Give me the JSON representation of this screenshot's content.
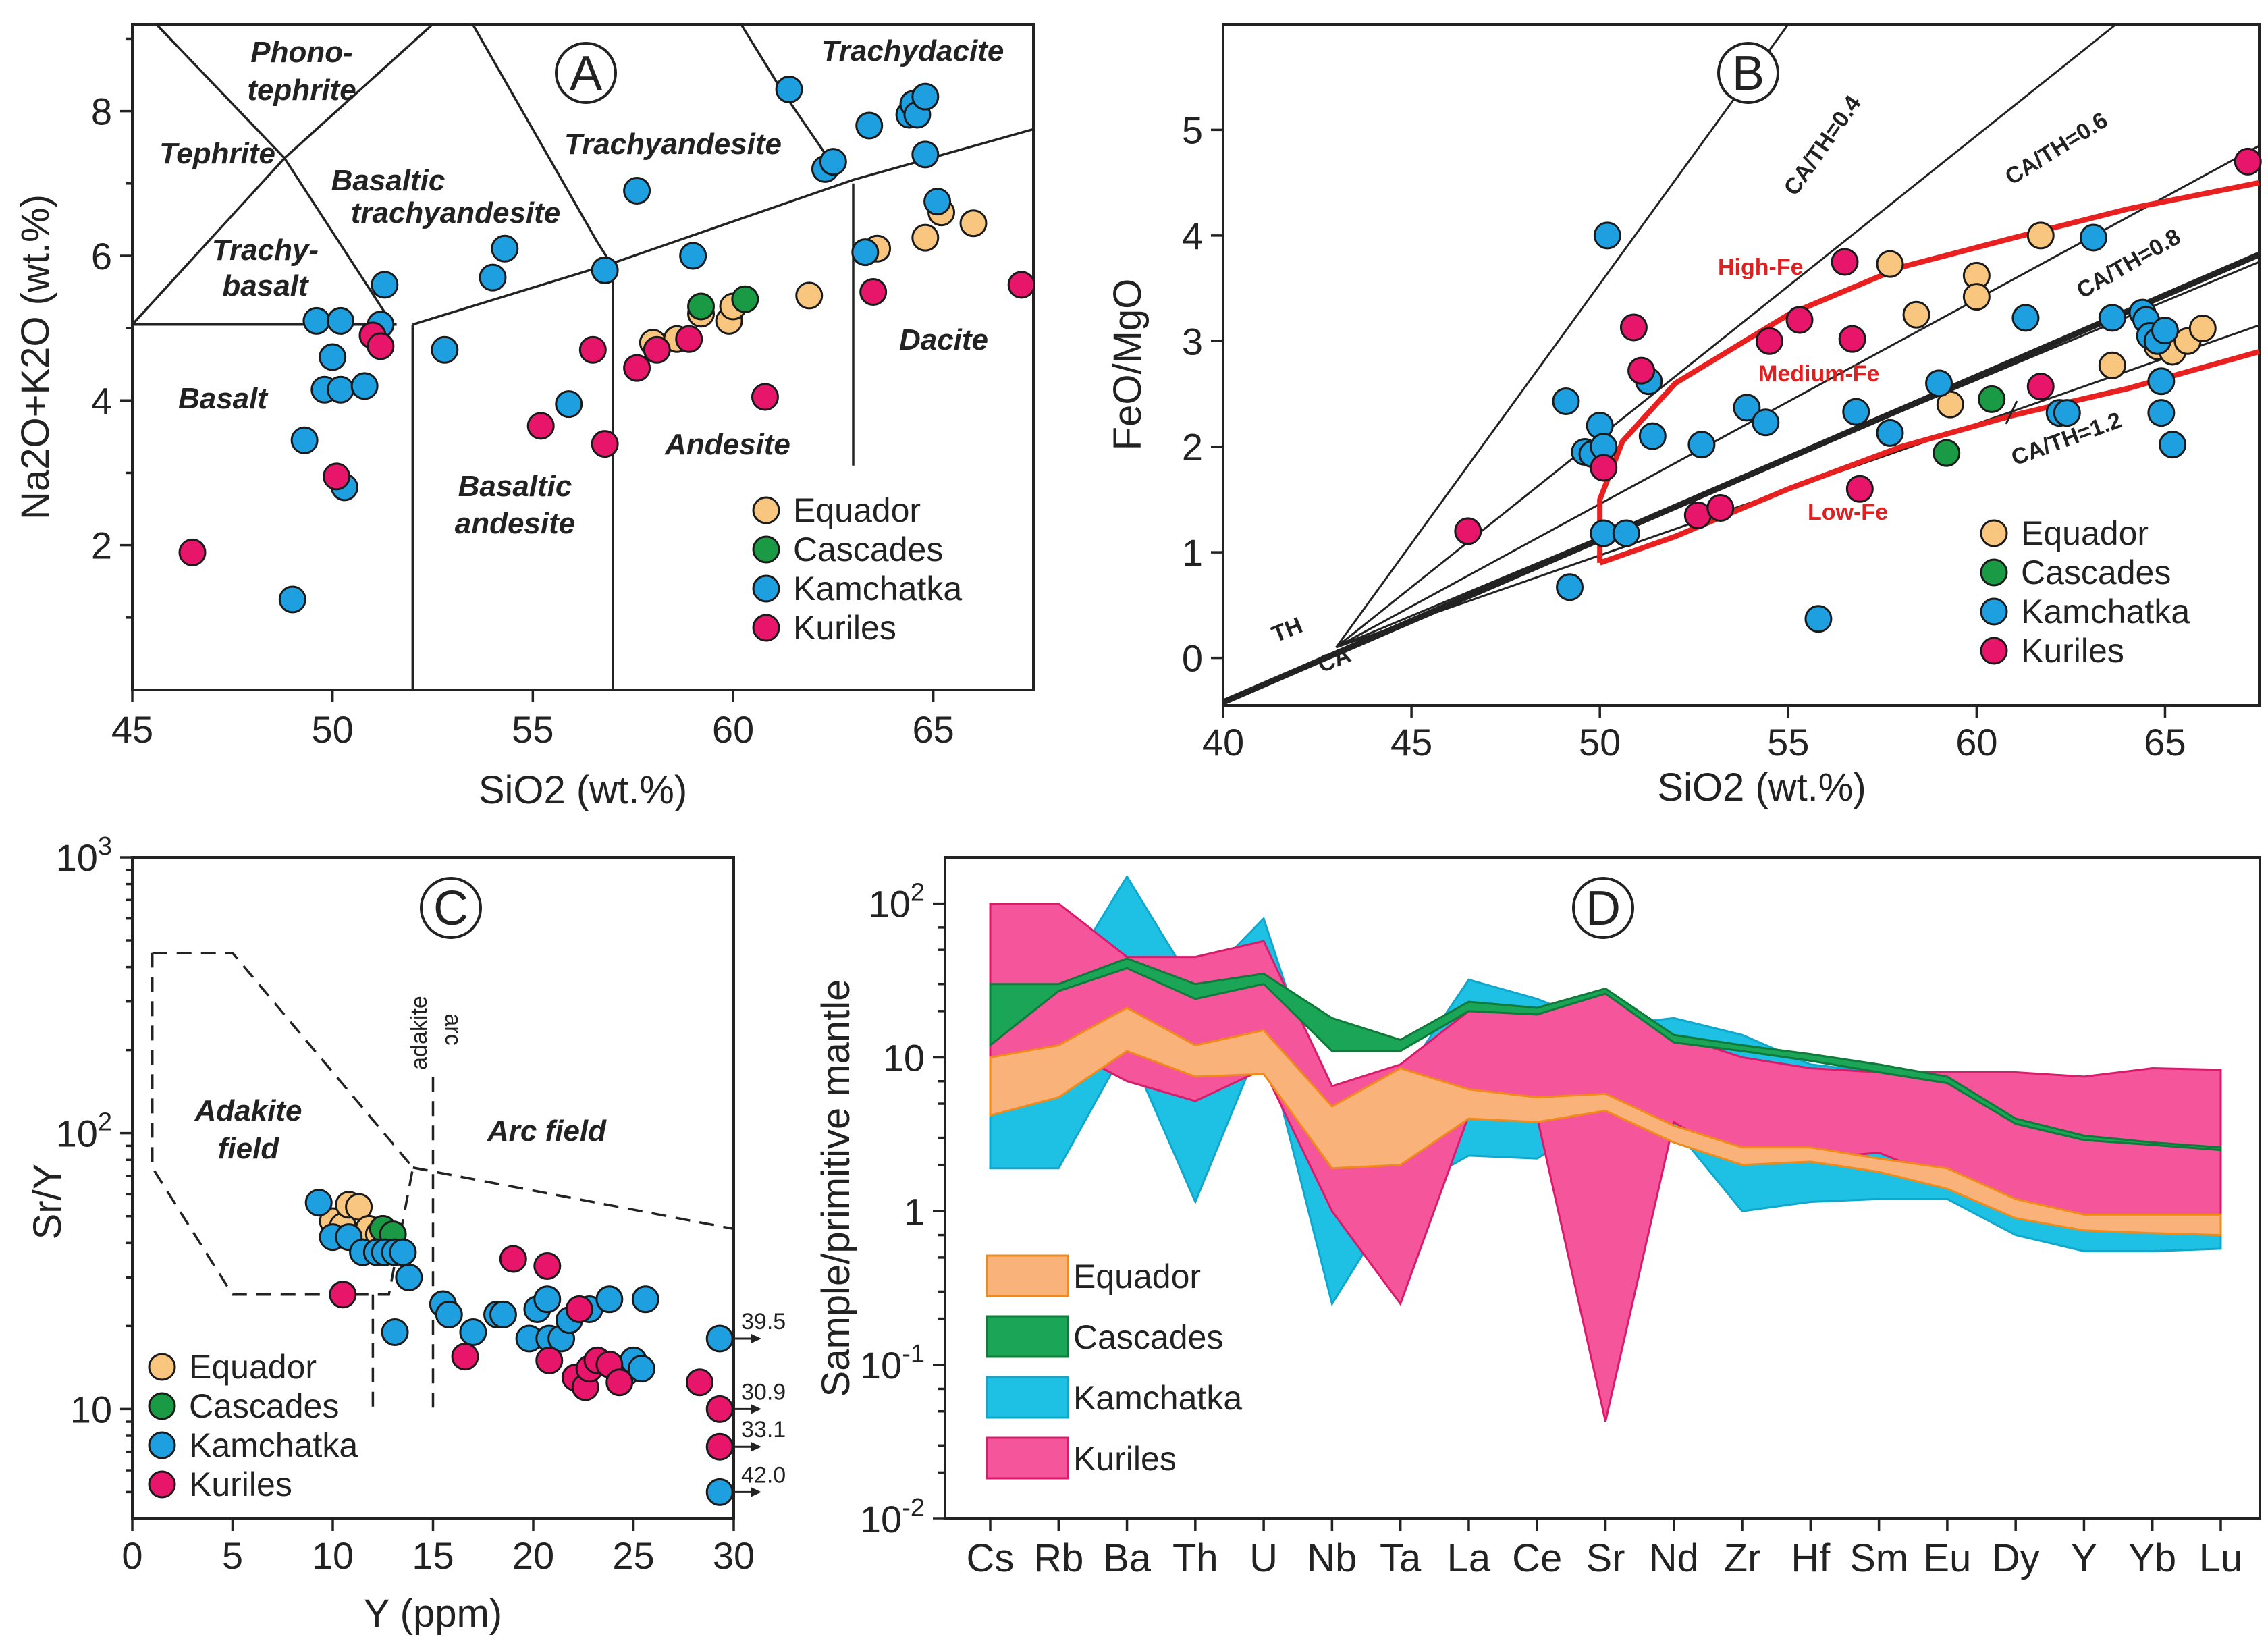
{
  "colors": {
    "Equador": "#f9c680",
    "Cascades": "#1a9a45",
    "Kamchatka": "#1e9fe0",
    "Kuriles": "#e8166b",
    "eq_fill": "#f8b27a",
    "eq_edge": "#f08a1a",
    "ca_fill": "#1ba556",
    "ka_fill": "#1ec0e4",
    "ku_fill": "#f5559a",
    "red": "#e82020"
  },
  "chart_data": [
    {
      "panel": "A",
      "type": "scatter",
      "title": "A",
      "xlabel": "SiO2 (wt.%)",
      "ylabel": "Na2O+K2O (wt.%)",
      "xlim": [
        45,
        67.5
      ],
      "ylim": [
        0,
        9.2
      ],
      "xticks": [
        "45",
        "50",
        "55",
        "60",
        "65"
      ],
      "yticks": [
        "2",
        "4",
        "6",
        "8"
      ],
      "field_labels": [
        "Phono-",
        "tephrite",
        "Tephrite",
        "Trachy-",
        "basalt",
        "Basaltic",
        "trachyandesite",
        "Trachyandesite",
        "Trachydacite",
        "Basalt",
        "Basaltic",
        "andesite",
        "Andesite",
        "Dacite"
      ],
      "legend": [
        "Equador",
        "Cascades",
        "Kamchatka",
        "Kuriles"
      ],
      "series": [
        {
          "name": "Equador",
          "points": [
            [
              58.0,
              4.8
            ],
            [
              58.6,
              4.85
            ],
            [
              59.2,
              5.2
            ],
            [
              59.9,
              5.1
            ],
            [
              60.0,
              5.3
            ],
            [
              61.9,
              5.45
            ],
            [
              63.6,
              6.1
            ],
            [
              64.8,
              6.25
            ],
            [
              65.2,
              6.6
            ],
            [
              66.0,
              6.45
            ]
          ]
        },
        {
          "name": "Cascades",
          "points": [
            [
              59.2,
              5.3
            ],
            [
              60.3,
              5.4
            ]
          ]
        },
        {
          "name": "Kamchatka",
          "points": [
            [
              49.0,
              1.25
            ],
            [
              49.3,
              3.45
            ],
            [
              49.6,
              5.1
            ],
            [
              49.8,
              4.15
            ],
            [
              50.0,
              4.6
            ],
            [
              50.2,
              5.1
            ],
            [
              50.2,
              4.15
            ],
            [
              50.3,
              2.8
            ],
            [
              50.8,
              4.2
            ],
            [
              51.2,
              5.05
            ],
            [
              51.3,
              5.6
            ],
            [
              52.8,
              4.7
            ],
            [
              54.0,
              5.7
            ],
            [
              54.3,
              6.1
            ],
            [
              55.9,
              3.95
            ],
            [
              56.8,
              5.8
            ],
            [
              57.6,
              6.9
            ],
            [
              59.0,
              6.0
            ],
            [
              61.4,
              8.3
            ],
            [
              62.3,
              7.2
            ],
            [
              62.5,
              7.3
            ],
            [
              63.3,
              6.05
            ],
            [
              63.4,
              7.8
            ],
            [
              64.4,
              7.95
            ],
            [
              64.5,
              8.1
            ],
            [
              64.6,
              7.95
            ],
            [
              64.8,
              8.2
            ],
            [
              64.8,
              7.4
            ],
            [
              65.1,
              6.75
            ]
          ]
        },
        {
          "name": "Kuriles",
          "points": [
            [
              46.5,
              1.9
            ],
            [
              50.1,
              2.95
            ],
            [
              51.0,
              4.9
            ],
            [
              51.2,
              4.75
            ],
            [
              55.2,
              3.65
            ],
            [
              56.5,
              4.7
            ],
            [
              56.8,
              3.4
            ],
            [
              57.6,
              4.45
            ],
            [
              58.1,
              4.7
            ],
            [
              58.9,
              4.85
            ],
            [
              60.8,
              4.05
            ],
            [
              63.5,
              5.5
            ],
            [
              67.2,
              5.6
            ]
          ]
        }
      ]
    },
    {
      "panel": "B",
      "type": "scatter",
      "title": "B",
      "xlabel": "SiO2 (wt.%)",
      "ylabel": "FeO/MgO",
      "xlim": [
        40,
        67.5
      ],
      "ylim": [
        -0.45,
        6
      ],
      "xticks": [
        "40",
        "45",
        "50",
        "55",
        "60",
        "65"
      ],
      "yticks": [
        "0",
        "1",
        "2",
        "3",
        "4",
        "5"
      ],
      "line_labels": [
        "CA/TH=0.4",
        "CA/TH=0.6",
        "CA/TH=0.8",
        "CA/TH=1.2",
        "TH",
        "CA"
      ],
      "field_labels": [
        "High-Fe",
        "Medium-Fe",
        "Low-Fe"
      ],
      "legend": [
        "Equador",
        "Cascades",
        "Kamchatka",
        "Kuriles"
      ],
      "series": [
        {
          "name": "Equador",
          "points": [
            [
              57.7,
              3.73
            ],
            [
              58.4,
              3.25
            ],
            [
              59.3,
              2.4
            ],
            [
              60.0,
              3.62
            ],
            [
              60.0,
              3.42
            ],
            [
              61.7,
              4.0
            ],
            [
              63.6,
              2.77
            ],
            [
              64.8,
              2.95
            ],
            [
              65.2,
              2.9
            ],
            [
              65.6,
              3.0
            ],
            [
              66.0,
              3.12
            ]
          ]
        },
        {
          "name": "Cascades",
          "points": [
            [
              59.2,
              1.94
            ],
            [
              60.4,
              2.45
            ]
          ]
        },
        {
          "name": "Kamchatka",
          "points": [
            [
              49.1,
              2.43
            ],
            [
              49.2,
              0.67
            ],
            [
              49.6,
              1.95
            ],
            [
              49.8,
              1.93
            ],
            [
              50.0,
              2.2
            ],
            [
              50.1,
              2.0
            ],
            [
              50.1,
              1.18
            ],
            [
              50.2,
              4.0
            ],
            [
              50.7,
              1.18
            ],
            [
              51.3,
              2.62
            ],
            [
              51.4,
              2.1
            ],
            [
              52.7,
              2.02
            ],
            [
              53.9,
              2.37
            ],
            [
              54.4,
              2.23
            ],
            [
              55.8,
              0.37
            ],
            [
              56.8,
              2.33
            ],
            [
              57.7,
              2.13
            ],
            [
              59.0,
              2.6
            ],
            [
              61.3,
              3.22
            ],
            [
              62.2,
              2.32
            ],
            [
              62.4,
              2.32
            ],
            [
              63.1,
              3.98
            ],
            [
              63.6,
              3.22
            ],
            [
              64.4,
              3.27
            ],
            [
              64.5,
              3.2
            ],
            [
              64.6,
              3.05
            ],
            [
              64.8,
              3.0
            ],
            [
              64.9,
              2.62
            ],
            [
              64.9,
              2.32
            ],
            [
              65.0,
              3.1
            ],
            [
              65.2,
              2.02
            ]
          ]
        },
        {
          "name": "Kuriles",
          "points": [
            [
              46.5,
              1.2
            ],
            [
              50.1,
              1.8
            ],
            [
              50.9,
              3.13
            ],
            [
              51.1,
              2.72
            ],
            [
              52.6,
              1.35
            ],
            [
              53.2,
              1.42
            ],
            [
              54.5,
              3.0
            ],
            [
              55.3,
              3.2
            ],
            [
              56.5,
              3.75
            ],
            [
              56.7,
              3.02
            ],
            [
              56.9,
              1.6
            ],
            [
              61.7,
              2.57
            ],
            [
              67.2,
              4.7
            ]
          ]
        }
      ]
    },
    {
      "panel": "C",
      "type": "scatter",
      "title": "C",
      "xlabel": "Y (ppm)",
      "ylabel": "Sr/Y",
      "xscale": "linear",
      "yscale": "log",
      "xlim": [
        0,
        30
      ],
      "ylim": [
        4,
        1000
      ],
      "xticks": [
        "0",
        "5",
        "10",
        "15",
        "20",
        "25",
        "30"
      ],
      "yticks_base": [
        "10",
        "10",
        "10"
      ],
      "yticks_exp": [
        "",
        "2",
        "3"
      ],
      "field_labels": [
        "Adakite",
        "field",
        "Arc field",
        "adakite",
        "arc"
      ],
      "offscale_labels": [
        "39.5",
        "30.9",
        "33.1",
        "42.0"
      ],
      "legend": [
        "Equador",
        "Cascades",
        "Kamchatka",
        "Kuriles"
      ],
      "series": [
        {
          "name": "Equador",
          "points": [
            [
              10.0,
              48
            ],
            [
              10.5,
              46
            ],
            [
              10.8,
              55
            ],
            [
              11.3,
              54
            ],
            [
              11.8,
              45
            ],
            [
              12.3,
              43
            ]
          ]
        },
        {
          "name": "Cascades",
          "points": [
            [
              12.5,
              45
            ],
            [
              13.0,
              43
            ]
          ]
        },
        {
          "name": "Kamchatka",
          "points": [
            [
              9.3,
              56
            ],
            [
              10.0,
              42
            ],
            [
              10.8,
              42
            ],
            [
              11.5,
              37
            ],
            [
              12.2,
              37
            ],
            [
              12.6,
              37
            ],
            [
              13.1,
              37
            ],
            [
              13.5,
              37
            ],
            [
              13.8,
              30
            ],
            [
              13.1,
              19
            ],
            [
              15.5,
              24
            ],
            [
              15.8,
              22
            ],
            [
              17.0,
              19
            ],
            [
              18.2,
              22
            ],
            [
              18.5,
              22
            ],
            [
              19.8,
              18
            ],
            [
              20.2,
              23
            ],
            [
              20.7,
              25
            ],
            [
              20.8,
              18
            ],
            [
              21.4,
              18
            ],
            [
              21.8,
              21
            ],
            [
              22.3,
              23
            ],
            [
              22.8,
              23
            ],
            [
              23.8,
              25
            ],
            [
              24.2,
              14
            ],
            [
              24.6,
              13.5
            ],
            [
              25.0,
              15
            ],
            [
              25.4,
              14
            ],
            [
              25.6,
              25
            ],
            [
              29.3,
              18
            ],
            [
              29.3,
              5
            ]
          ]
        },
        {
          "name": "Kuriles",
          "points": [
            [
              10.5,
              26
            ],
            [
              16.6,
              15.5
            ],
            [
              19.0,
              35
            ],
            [
              20.7,
              33
            ],
            [
              20.8,
              15
            ],
            [
              22.1,
              13
            ],
            [
              22.3,
              23
            ],
            [
              22.6,
              12
            ],
            [
              22.8,
              14
            ],
            [
              23.2,
              15
            ],
            [
              23.8,
              14.5
            ],
            [
              24.3,
              12.5
            ],
            [
              28.3,
              12.5
            ],
            [
              29.3,
              10
            ],
            [
              29.3,
              7.3
            ]
          ]
        }
      ]
    },
    {
      "panel": "D",
      "type": "area",
      "title": "D",
      "xlabel": "",
      "ylabel": "Sample/primitive mantle",
      "yscale": "log",
      "ylim": [
        0.01,
        200
      ],
      "yticks_base": [
        "10",
        "10",
        "1",
        "10",
        "10"
      ],
      "yticks_exp": [
        "-2",
        "-1",
        "",
        "",
        "2"
      ],
      "categories": [
        "Cs",
        "Rb",
        "Ba",
        "Th",
        "U",
        "Nb",
        "Ta",
        "La",
        "Ce",
        "Sr",
        "Nd",
        "Zr",
        "Hf",
        "Sm",
        "Eu",
        "Dy",
        "Y",
        "Yb",
        "Lu"
      ],
      "legend": [
        "Equador",
        "Cascades",
        "Kamchatka",
        "Kuriles"
      ],
      "series": [
        {
          "name": "Kamchatka",
          "upper": [
            11,
            28,
            150,
            28,
            80,
            3.5,
            7,
            32,
            24,
            16,
            18,
            14,
            9,
            8,
            7,
            3.5,
            3,
            2.8,
            2.6
          ],
          "lower": [
            1.9,
            1.9,
            12,
            1.15,
            14,
            0.25,
            1.3,
            2.3,
            2.2,
            4.2,
            3.5,
            1.0,
            1.15,
            1.2,
            1.2,
            0.7,
            0.55,
            0.55,
            0.57
          ]
        },
        {
          "name": "Kuriles",
          "upper": [
            100,
            100,
            45,
            45,
            57,
            6.5,
            9,
            20,
            20,
            26,
            14,
            10,
            8.5,
            8,
            8,
            8,
            7.5,
            8.5,
            8.3
          ],
          "lower": [
            10,
            12,
            7,
            5.2,
            8.4,
            1.0,
            0.25,
            4.2,
            4.1,
            0.043,
            3.8,
            2.0,
            2.2,
            2.4,
            1.6,
            1.0,
            0.9,
            0.85,
            0.8
          ]
        },
        {
          "name": "Cascades",
          "upper": [
            30,
            30,
            44,
            30,
            35,
            18,
            13,
            23,
            21,
            28,
            14,
            12,
            10.5,
            9,
            7.5,
            4,
            3.1,
            2.8,
            2.6
          ],
          "lower": [
            12,
            27,
            38,
            24,
            30,
            11,
            11,
            20,
            19,
            26,
            12.5,
            11,
            9.5,
            8,
            6.8,
            3.7,
            2.9,
            2.7,
            2.5
          ]
        },
        {
          "name": "Equador",
          "upper": [
            10,
            12,
            21,
            12,
            15,
            4.8,
            8.5,
            6.2,
            5.5,
            5.8,
            3.6,
            2.6,
            2.6,
            2.2,
            1.9,
            1.2,
            0.95,
            0.95,
            0.95
          ],
          "lower": [
            4.2,
            5.5,
            11,
            7.5,
            7.8,
            1.9,
            2.0,
            4.0,
            3.8,
            4.5,
            2.8,
            2.0,
            2.1,
            1.8,
            1.4,
            0.9,
            0.75,
            0.72,
            0.7
          ]
        }
      ]
    }
  ]
}
